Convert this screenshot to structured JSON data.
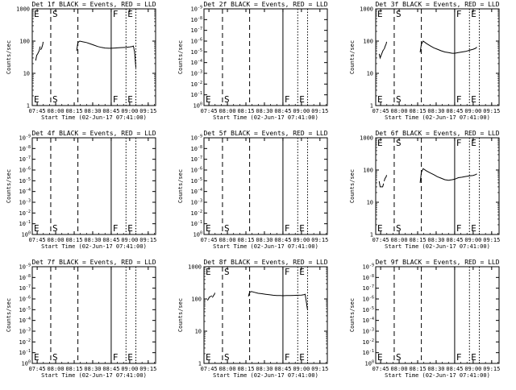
{
  "page": {
    "background": "#ffffff",
    "ink": "#000000"
  },
  "chart_data": {
    "type": "line",
    "description_axes": {
      "xlabel": "Start Time (02-Jun-17 07:41:00)",
      "ylabel": "Counts/sec",
      "x_ticks": [
        "07:45",
        "08:00",
        "08:15",
        "08:30",
        "08:45",
        "09:00",
        "09:15"
      ],
      "x_tick_minutes": [
        4,
        19,
        34,
        49,
        64,
        79,
        94
      ],
      "x_range_minutes": [
        0,
        100
      ],
      "ylog": true
    },
    "markers": [
      {
        "label": "E",
        "minute": 0,
        "style": "solid"
      },
      {
        "label": "S",
        "minute": 15,
        "style": "dashed"
      },
      {
        "label": "",
        "minute": 37,
        "style": "dashed"
      },
      {
        "label": "F",
        "minute": 64,
        "style": "solid"
      },
      {
        "label": "E",
        "minute": 76,
        "style": "dotted"
      },
      {
        "label": "",
        "minute": 84,
        "style": "dotted"
      }
    ],
    "panels": [
      {
        "title": "Det 1f BLACK = Events, RED = LLD",
        "yscale": "log",
        "ylim": [
          1,
          1000
        ],
        "y_ticks": [
          {
            "b": "1",
            "e": "",
            "v": 1
          },
          {
            "b": "10",
            "e": "",
            "v": 10
          },
          {
            "b": "100",
            "e": "",
            "v": 100
          },
          {
            "b": "1000",
            "e": "",
            "v": 1000
          }
        ],
        "series": [
          {
            "segments": [
              [
                [
                  2.8,
                  25
                ],
                [
                  3.6,
                  36
                ],
                [
                  4.4,
                  40
                ],
                [
                  5.6,
                  50
                ],
                [
                  6.4,
                  68
                ]
              ],
              [
                [
                  6.8,
                  54
                ],
                [
                  7.6,
                  60
                ],
                [
                  8.5,
                  78
                ],
                [
                  8.8,
                  95
                ]
              ],
              [
                [
                  36,
                  50
                ],
                [
                  37,
                  90
                ],
                [
                  38.5,
                  100
                ],
                [
                  41,
                  95
                ],
                [
                  44,
                  90
                ],
                [
                  47,
                  82
                ],
                [
                  50,
                  75
                ],
                [
                  53,
                  68
                ],
                [
                  56,
                  64
                ],
                [
                  59,
                  61
                ],
                [
                  62,
                  60
                ],
                [
                  64,
                  60
                ],
                [
                  67,
                  61
                ],
                [
                  70,
                  62
                ],
                [
                  73,
                  63
                ],
                [
                  76,
                  64
                ],
                [
                  79,
                  66
                ],
                [
                  81,
                  68
                ],
                [
                  82,
                  70
                ],
                [
                  83,
                  45
                ],
                [
                  84,
                  15
                ]
              ]
            ]
          }
        ]
      },
      {
        "title": "Det 2f BLACK = Events, RED = LLD",
        "yscale": "log",
        "ylim": [
          1e-06,
          1e-09
        ],
        "y_ticks": [
          {
            "b": "10",
            "e": "-9",
            "v": -9
          },
          {
            "b": "10",
            "e": "-8",
            "v": -8
          },
          {
            "b": "10",
            "e": "-7",
            "v": -7
          },
          {
            "b": "10",
            "e": "-6",
            "v": -6
          },
          {
            "b": "10",
            "e": "-5",
            "v": -5
          },
          {
            "b": "10",
            "e": "-4",
            "v": -4
          },
          {
            "b": "10",
            "e": "-3",
            "v": -3
          },
          {
            "b": "10",
            "e": "-2",
            "v": -2
          },
          {
            "b": "10",
            "e": "-1",
            "v": -1
          },
          {
            "b": "10",
            "e": "0",
            "v": 0
          }
        ],
        "series": []
      },
      {
        "title": "Det 3f BLACK = Events, RED = LLD",
        "yscale": "log",
        "ylim": [
          1,
          1000
        ],
        "y_ticks": [
          {
            "b": "1",
            "e": "",
            "v": 1
          },
          {
            "b": "10",
            "e": "",
            "v": 10
          },
          {
            "b": "100",
            "e": "",
            "v": 100
          },
          {
            "b": "1000",
            "e": "",
            "v": 1000
          }
        ],
        "series": [
          {
            "segments": [
              [
                [
                  2.8,
                  40
                ],
                [
                  3.6,
                  30
                ],
                [
                  4.4,
                  36
                ],
                [
                  5.6,
                  48
                ],
                [
                  6.4,
                  55
                ]
              ],
              [
                [
                  6.8,
                  55
                ],
                [
                  7.6,
                  68
                ],
                [
                  8.5,
                  82
                ],
                [
                  8.8,
                  95
                ]
              ],
              [
                [
                  36,
                  45
                ],
                [
                  37,
                  80
                ],
                [
                  38.5,
                  100
                ],
                [
                  41,
                  85
                ],
                [
                  44,
                  72
                ],
                [
                  47,
                  62
                ],
                [
                  50,
                  56
                ],
                [
                  53,
                  50
                ],
                [
                  56,
                  46
                ],
                [
                  59,
                  44
                ],
                [
                  62,
                  42
                ],
                [
                  64,
                  42
                ],
                [
                  67,
                  44
                ],
                [
                  70,
                  46
                ],
                [
                  73,
                  48
                ],
                [
                  76,
                  52
                ],
                [
                  79,
                  56
                ],
                [
                  81,
                  60
                ],
                [
                  82,
                  65
                ]
              ]
            ]
          }
        ]
      },
      {
        "title": "Det 4f BLACK = Events, RED = LLD",
        "yscale": "log",
        "ylim": [
          1e-06,
          1e-09
        ],
        "y_ticks": [
          {
            "b": "10",
            "e": "-9",
            "v": -9
          },
          {
            "b": "10",
            "e": "-8",
            "v": -8
          },
          {
            "b": "10",
            "e": "-7",
            "v": -7
          },
          {
            "b": "10",
            "e": "-6",
            "v": -6
          },
          {
            "b": "10",
            "e": "-5",
            "v": -5
          },
          {
            "b": "10",
            "e": "-4",
            "v": -4
          },
          {
            "b": "10",
            "e": "-3",
            "v": -3
          },
          {
            "b": "10",
            "e": "-2",
            "v": -2
          },
          {
            "b": "10",
            "e": "-1",
            "v": -1
          },
          {
            "b": "10",
            "e": "0",
            "v": 0
          }
        ],
        "series": []
      },
      {
        "title": "Det 5f BLACK = Events, RED = LLD",
        "yscale": "log",
        "ylim": [
          1e-06,
          1e-09
        ],
        "y_ticks": [
          {
            "b": "10",
            "e": "-9",
            "v": -9
          },
          {
            "b": "10",
            "e": "-8",
            "v": -8
          },
          {
            "b": "10",
            "e": "-7",
            "v": -7
          },
          {
            "b": "10",
            "e": "-6",
            "v": -6
          },
          {
            "b": "10",
            "e": "-5",
            "v": -5
          },
          {
            "b": "10",
            "e": "-4",
            "v": -4
          },
          {
            "b": "10",
            "e": "-3",
            "v": -3
          },
          {
            "b": "10",
            "e": "-2",
            "v": -2
          },
          {
            "b": "10",
            "e": "-1",
            "v": -1
          },
          {
            "b": "10",
            "e": "0",
            "v": 0
          }
        ],
        "series": []
      },
      {
        "title": "Det 6f BLACK = Events, RED = LLD",
        "yscale": "log",
        "ylim": [
          1,
          1000
        ],
        "y_ticks": [
          {
            "b": "1",
            "e": "",
            "v": 1
          },
          {
            "b": "10",
            "e": "",
            "v": 10
          },
          {
            "b": "100",
            "e": "",
            "v": 100
          },
          {
            "b": "1000",
            "e": "",
            "v": 1000
          }
        ],
        "series": [
          {
            "segments": [
              [
                [
                  2.8,
                  45
                ],
                [
                  3.6,
                  30
                ],
                [
                  4.4,
                  30
                ],
                [
                  5.6,
                  30
                ],
                [
                  6.4,
                  38
                ]
              ],
              [
                [
                  6.8,
                  45
                ],
                [
                  7.6,
                  55
                ],
                [
                  8.5,
                  62
                ],
                [
                  8.8,
                  70
                ]
              ],
              [
                [
                  36,
                  40
                ],
                [
                  37,
                  85
                ],
                [
                  38.5,
                  110
                ],
                [
                  41,
                  95
                ],
                [
                  44,
                  82
                ],
                [
                  47,
                  72
                ],
                [
                  50,
                  62
                ],
                [
                  53,
                  56
                ],
                [
                  56,
                  50
                ],
                [
                  59,
                  48
                ],
                [
                  62,
                  50
                ],
                [
                  64,
                  52
                ],
                [
                  67,
                  58
                ],
                [
                  70,
                  60
                ],
                [
                  73,
                  63
                ],
                [
                  76,
                  66
                ],
                [
                  79,
                  68
                ],
                [
                  81,
                  72
                ],
                [
                  82,
                  76
                ]
              ]
            ]
          }
        ]
      },
      {
        "title": "Det 7f BLACK = Events, RED = LLD",
        "yscale": "log",
        "ylim": [
          1e-06,
          1e-09
        ],
        "y_ticks": [
          {
            "b": "10",
            "e": "-9",
            "v": -9
          },
          {
            "b": "10",
            "e": "-8",
            "v": -8
          },
          {
            "b": "10",
            "e": "-7",
            "v": -7
          },
          {
            "b": "10",
            "e": "-6",
            "v": -6
          },
          {
            "b": "10",
            "e": "-5",
            "v": -5
          },
          {
            "b": "10",
            "e": "-4",
            "v": -4
          },
          {
            "b": "10",
            "e": "-3",
            "v": -3
          },
          {
            "b": "10",
            "e": "-2",
            "v": -2
          },
          {
            "b": "10",
            "e": "-1",
            "v": -1
          },
          {
            "b": "10",
            "e": "0",
            "v": 0
          }
        ],
        "series": []
      },
      {
        "title": "Det 8f BLACK = Events, RED = LLD",
        "yscale": "log",
        "ylim": [
          1,
          1000
        ],
        "y_ticks": [
          {
            "b": "1",
            "e": "",
            "v": 1
          },
          {
            "b": "10",
            "e": "",
            "v": 10
          },
          {
            "b": "100",
            "e": "",
            "v": 100
          },
          {
            "b": "1000",
            "e": "",
            "v": 1000
          }
        ],
        "series": [
          {
            "segments": [
              [
                [
                  2.8,
                  90
                ],
                [
                  3.6,
                  100
                ],
                [
                  4.4,
                  115
                ],
                [
                  5.6,
                  120
                ],
                [
                  6.4,
                  125
                ]
              ],
              [
                [
                  6.8,
                  110
                ],
                [
                  7.6,
                  125
                ],
                [
                  8.5,
                  140
                ],
                [
                  8.8,
                  155
                ]
              ],
              [
                [
                  36,
                  120
                ],
                [
                  37,
                  160
                ],
                [
                  38.5,
                  170
                ],
                [
                  41,
                  160
                ],
                [
                  44,
                  150
                ],
                [
                  47,
                  145
                ],
                [
                  50,
                  140
                ],
                [
                  53,
                  135
                ],
                [
                  56,
                  130
                ],
                [
                  59,
                  128
                ],
                [
                  62,
                  127
                ],
                [
                  64,
                  126
                ],
                [
                  67,
                  127
                ],
                [
                  70,
                  128
                ],
                [
                  73,
                  129
                ],
                [
                  76,
                  130
                ],
                [
                  79,
                  132
                ],
                [
                  81,
                  135
                ],
                [
                  82,
                  140
                ],
                [
                  83,
                  80
                ],
                [
                  84,
                  45
                ]
              ]
            ]
          }
        ]
      },
      {
        "title": "Det 9f BLACK = Events, RED = LLD",
        "yscale": "log",
        "ylim": [
          1e-06,
          1e-09
        ],
        "y_ticks": [
          {
            "b": "10",
            "e": "-9",
            "v": -9
          },
          {
            "b": "10",
            "e": "-8",
            "v": -8
          },
          {
            "b": "10",
            "e": "-7",
            "v": -7
          },
          {
            "b": "10",
            "e": "-6",
            "v": -6
          },
          {
            "b": "10",
            "e": "-5",
            "v": -5
          },
          {
            "b": "10",
            "e": "-4",
            "v": -4
          },
          {
            "b": "10",
            "e": "-3",
            "v": -3
          },
          {
            "b": "10",
            "e": "-2",
            "v": -2
          },
          {
            "b": "10",
            "e": "-1",
            "v": -1
          },
          {
            "b": "10",
            "e": "0",
            "v": 0
          }
        ],
        "series": []
      }
    ]
  }
}
